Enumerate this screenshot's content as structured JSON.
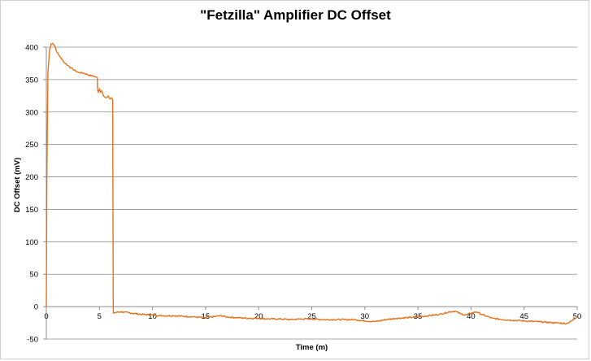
{
  "chart_data": {
    "type": "line",
    "title": "\"Fetzilla\" Amplifier DC Offset",
    "xlabel": "Time (m)",
    "ylabel": "DC Offset (mV)",
    "xlim": [
      0,
      50
    ],
    "ylim": [
      -50,
      400
    ],
    "x_ticks": [
      0,
      5,
      10,
      15,
      20,
      25,
      30,
      35,
      40,
      45,
      50
    ],
    "y_ticks": [
      -50,
      0,
      50,
      100,
      150,
      200,
      250,
      300,
      350,
      400
    ],
    "grid": "horizontal",
    "legend": "none",
    "series": [
      {
        "color": "#e8731c",
        "x": [
          0,
          0.05,
          0.15,
          0.3,
          0.45,
          0.6,
          0.8,
          1.0,
          1.3,
          1.6,
          2.0,
          2.5,
          3.0,
          3.5,
          4.0,
          4.5,
          4.8,
          4.82,
          4.9,
          5.0,
          5.1,
          5.2,
          5.4,
          5.6,
          5.8,
          6.0,
          6.2,
          6.25,
          6.3,
          6.32,
          6.5,
          7,
          8,
          9,
          10,
          11,
          12,
          13,
          14,
          15,
          16,
          16.5,
          17,
          18,
          19,
          20,
          21,
          22,
          23,
          24,
          25,
          26,
          27,
          28,
          29,
          30,
          31,
          32,
          33,
          34,
          35,
          36,
          37,
          38,
          38.5,
          39,
          39.5,
          40,
          40.5,
          41,
          42,
          43,
          44,
          45,
          46,
          47,
          48,
          49,
          49.5,
          50
        ],
        "y": [
          0,
          200,
          360,
          395,
          405,
          406,
          402,
          392,
          385,
          378,
          372,
          366,
          361,
          360,
          357,
          355,
          353,
          335,
          330,
          336,
          330,
          333,
          325,
          322,
          325,
          320,
          321,
          318,
          0,
          -10,
          -9,
          -8,
          -10,
          -12,
          -13,
          -14,
          -14,
          -15,
          -16,
          -17,
          -15,
          -14,
          -16,
          -17,
          -18,
          -18,
          -19,
          -19,
          -20,
          -19,
          -19,
          -20,
          -20,
          -20,
          -20,
          -22,
          -23,
          -20,
          -18,
          -17,
          -16,
          -14,
          -12,
          -8,
          -7,
          -11,
          -13,
          -10,
          -8,
          -12,
          -18,
          -20,
          -21,
          -22,
          -23,
          -24,
          -25,
          -26,
          -22,
          -15
        ]
      }
    ]
  }
}
